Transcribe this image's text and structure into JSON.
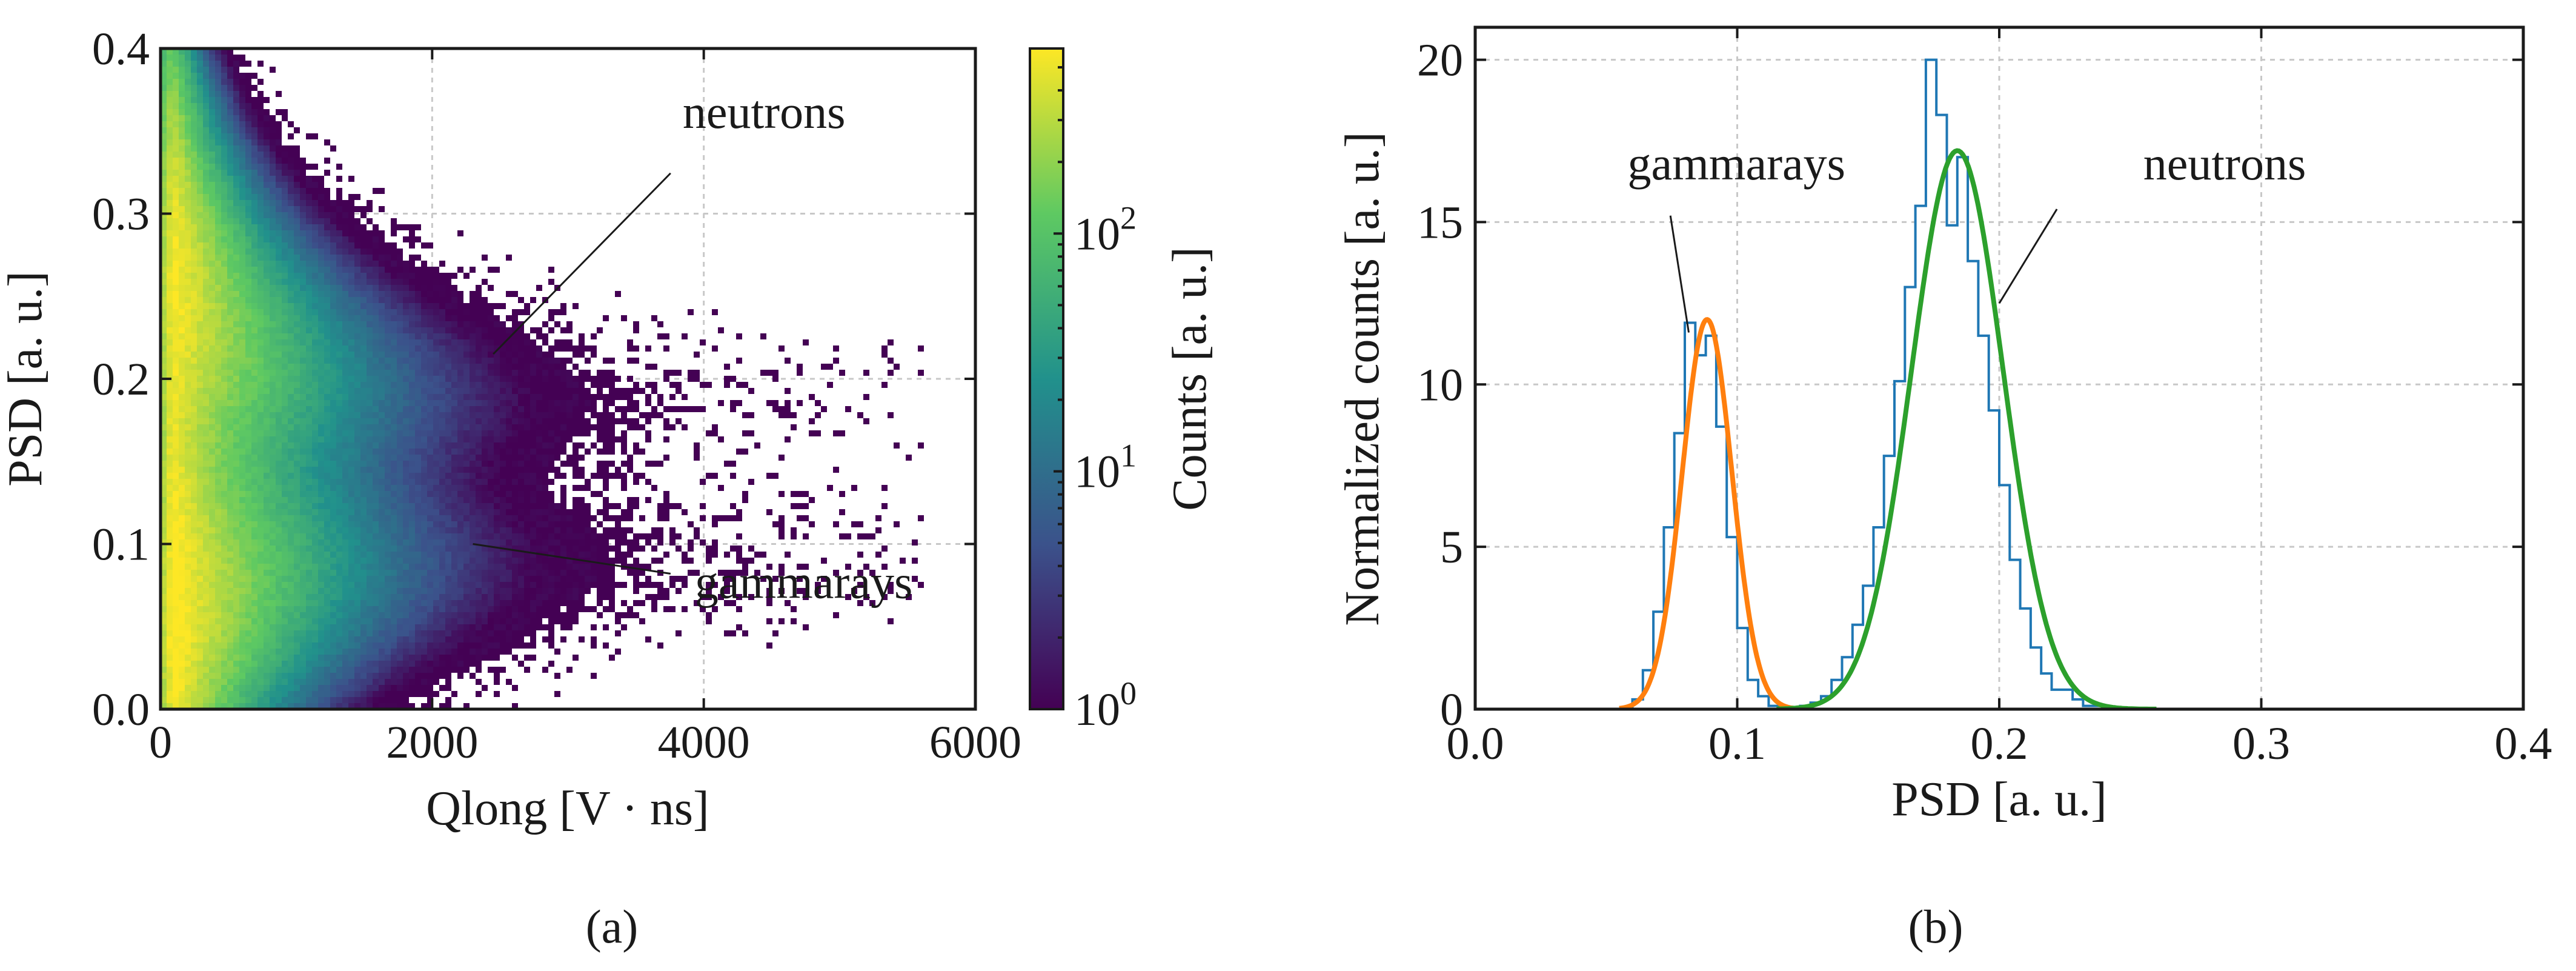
{
  "chart_data": [
    {
      "panel_label": "(a)",
      "type": "heatmap",
      "title": "",
      "xlabel": "Qlong [V · ns]",
      "ylabel": "PSD [a. u.]",
      "xlim": [
        0,
        6000
      ],
      "ylim": [
        0,
        0.4
      ],
      "xticks": [
        0,
        2000,
        4000,
        6000
      ],
      "xtick_labels": [
        "0",
        "2000",
        "4000",
        "6000"
      ],
      "yticks": [
        0.0,
        0.1,
        0.2,
        0.3,
        0.4
      ],
      "ytick_labels": [
        "0.0",
        "0.1",
        "0.2",
        "0.3",
        "0.4"
      ],
      "grid": true,
      "colorbar": {
        "label": "Counts [a. u.]",
        "scale": "log",
        "range": [
          1,
          600
        ],
        "ticks": [
          1,
          10,
          100
        ],
        "tick_labels": [
          {
            "base": "10",
            "exp": "0"
          },
          {
            "base": "10",
            "exp": "1"
          },
          {
            "base": "10",
            "exp": "2"
          }
        ],
        "colormap": [
          "#440154",
          "#3b528b",
          "#21918c",
          "#5ec962",
          "#fde725"
        ]
      },
      "bands": [
        {
          "name": "neutrons",
          "psd_center": 0.185,
          "psd_center_at_low_q": 0.27,
          "extent_qlong": 5600
        },
        {
          "name": "gammarays",
          "psd_center": 0.09,
          "psd_center_at_low_q": 0.05,
          "extent_qlong": 5300
        }
      ],
      "annotations": [
        {
          "text": "neutrons",
          "point": [
            2450,
            0.215
          ],
          "text_pos": [
            3800,
            0.33
          ]
        },
        {
          "text": "gammarays",
          "point": [
            2300,
            0.1
          ],
          "text_pos": [
            3800,
            0.06
          ]
        }
      ]
    },
    {
      "panel_label": "(b)",
      "type": "line",
      "title": "",
      "xlabel": "PSD [a. u.]",
      "ylabel": "Normalized counts [a. u.]",
      "xlim": [
        0,
        0.4
      ],
      "ylim": [
        0,
        21
      ],
      "xticks": [
        0,
        0.1,
        0.2,
        0.3,
        0.4
      ],
      "xtick_labels": [
        "0.0",
        "0.1",
        "0.2",
        "0.3",
        "0.4"
      ],
      "yticks": [
        0,
        5,
        10,
        15,
        20
      ],
      "ytick_labels": [
        "0",
        "5",
        "10",
        "15",
        "20"
      ],
      "grid": true,
      "series": [
        {
          "name": "histogram",
          "style": "step",
          "color": "#1f77b4",
          "bin_width": 0.004,
          "bin_edges_start": 0.06,
          "values": [
            0.3,
            1.2,
            3.0,
            5.6,
            8.5,
            11.9,
            10.9,
            11.5,
            8.7,
            5.3,
            2.5,
            0.9,
            0.4,
            0.1,
            0.05,
            0.05,
            0.1,
            0.2,
            0.4,
            0.9,
            1.6,
            2.6,
            3.8,
            5.6,
            7.8,
            10.1,
            13.0,
            15.5,
            20.0,
            18.3,
            14.9,
            17.0,
            13.8,
            11.5,
            9.2,
            6.9,
            4.6,
            3.1,
            1.9,
            1.1,
            0.6,
            0.6,
            0.3,
            0.1,
            0.1,
            0.05
          ]
        },
        {
          "name": "gammarays fit",
          "style": "gaussian",
          "color": "#ff7f0e",
          "mean": 0.0885,
          "sigma": 0.0095,
          "amplitude": 12.0,
          "range": [
            0.055,
            0.125
          ]
        },
        {
          "name": "neutrons fit",
          "style": "gaussian",
          "color": "#2ca02c",
          "mean": 0.184,
          "sigma": 0.0175,
          "amplitude": 17.2,
          "range": [
            0.115,
            0.26
          ]
        }
      ],
      "annotations": [
        {
          "text": "gammarays",
          "point": [
            0.0815,
            11.6
          ],
          "text_pos": [
            0.06,
            16.5
          ]
        },
        {
          "text": "neutrons",
          "point": [
            0.2,
            12.5
          ],
          "text_pos": [
            0.27,
            16.5
          ]
        }
      ]
    }
  ]
}
